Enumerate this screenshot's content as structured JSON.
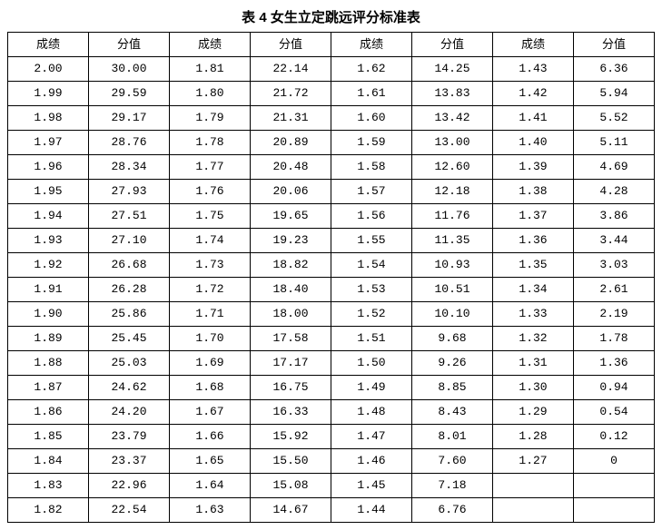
{
  "title": "表 4 女生立定跳远评分标准表",
  "headers": [
    "成绩",
    "分值",
    "成绩",
    "分值",
    "成绩",
    "分值",
    "成绩",
    "分值"
  ],
  "rows": [
    [
      "2.00",
      "30.00",
      "1.81",
      "22.14",
      "1.62",
      "14.25",
      "1.43",
      "6.36"
    ],
    [
      "1.99",
      "29.59",
      "1.80",
      "21.72",
      "1.61",
      "13.83",
      "1.42",
      "5.94"
    ],
    [
      "1.98",
      "29.17",
      "1.79",
      "21.31",
      "1.60",
      "13.42",
      "1.41",
      "5.52"
    ],
    [
      "1.97",
      "28.76",
      "1.78",
      "20.89",
      "1.59",
      "13.00",
      "1.40",
      "5.11"
    ],
    [
      "1.96",
      "28.34",
      "1.77",
      "20.48",
      "1.58",
      "12.60",
      "1.39",
      "4.69"
    ],
    [
      "1.95",
      "27.93",
      "1.76",
      "20.06",
      "1.57",
      "12.18",
      "1.38",
      "4.28"
    ],
    [
      "1.94",
      "27.51",
      "1.75",
      "19.65",
      "1.56",
      "11.76",
      "1.37",
      "3.86"
    ],
    [
      "1.93",
      "27.10",
      "1.74",
      "19.23",
      "1.55",
      "11.35",
      "1.36",
      "3.44"
    ],
    [
      "1.92",
      "26.68",
      "1.73",
      "18.82",
      "1.54",
      "10.93",
      "1.35",
      "3.03"
    ],
    [
      "1.91",
      "26.28",
      "1.72",
      "18.40",
      "1.53",
      "10.51",
      "1.34",
      "2.61"
    ],
    [
      "1.90",
      "25.86",
      "1.71",
      "18.00",
      "1.52",
      "10.10",
      "1.33",
      "2.19"
    ],
    [
      "1.89",
      "25.45",
      "1.70",
      "17.58",
      "1.51",
      "9.68",
      "1.32",
      "1.78"
    ],
    [
      "1.88",
      "25.03",
      "1.69",
      "17.17",
      "1.50",
      "9.26",
      "1.31",
      "1.36"
    ],
    [
      "1.87",
      "24.62",
      "1.68",
      "16.75",
      "1.49",
      "8.85",
      "1.30",
      "0.94"
    ],
    [
      "1.86",
      "24.20",
      "1.67",
      "16.33",
      "1.48",
      "8.43",
      "1.29",
      "0.54"
    ],
    [
      "1.85",
      "23.79",
      "1.66",
      "15.92",
      "1.47",
      "8.01",
      "1.28",
      "0.12"
    ],
    [
      "1.84",
      "23.37",
      "1.65",
      "15.50",
      "1.46",
      "7.60",
      "1.27",
      "0"
    ],
    [
      "1.83",
      "22.96",
      "1.64",
      "15.08",
      "1.45",
      "7.18",
      "",
      ""
    ],
    [
      "1.82",
      "22.54",
      "1.63",
      "14.67",
      "1.44",
      "6.76",
      "",
      ""
    ]
  ],
  "table": {
    "border_color": "#000000",
    "background_color": "#ffffff",
    "font_size": 13,
    "title_fontsize": 15,
    "columns": 8,
    "rows_count": 19
  }
}
